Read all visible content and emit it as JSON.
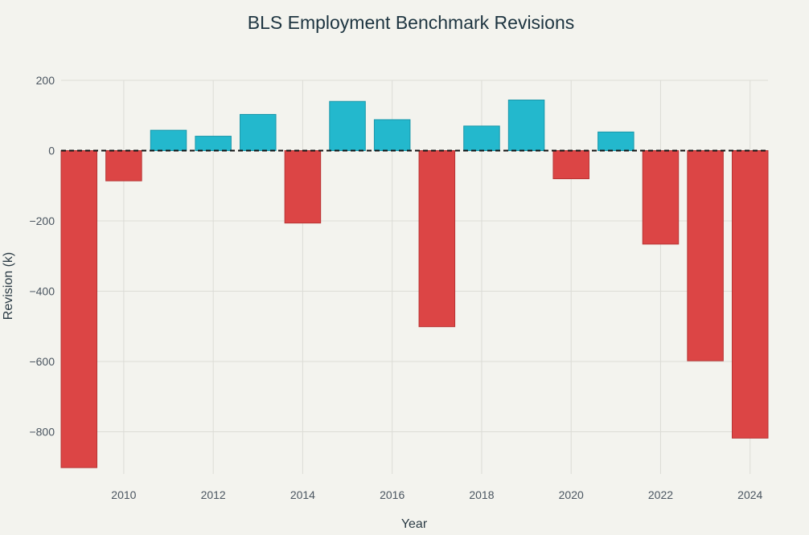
{
  "chart_data": {
    "type": "bar",
    "title": "BLS Employment Benchmark Revisions",
    "xlabel": "Year",
    "ylabel": "Revision (k)",
    "ylim": [
      -920,
      200
    ],
    "xlim": [
      2008.6,
      2024.4
    ],
    "yticks": [
      200,
      0,
      -200,
      -400,
      -600,
      -800
    ],
    "ytick_labels": [
      "200",
      "0",
      "−200",
      "−400",
      "−600",
      "−800"
    ],
    "xticks": [
      2010,
      2012,
      2014,
      2016,
      2018,
      2020,
      2022,
      2024
    ],
    "xtick_labels": [
      "2010",
      "2012",
      "2014",
      "2016",
      "2018",
      "2020",
      "2022",
      "2024"
    ],
    "categories": [
      2009,
      2010,
      2011,
      2012,
      2013,
      2014,
      2015,
      2016,
      2017,
      2018,
      2019,
      2020,
      2021,
      2022,
      2023,
      2024
    ],
    "values": [
      -902,
      -86,
      58,
      41,
      103,
      -206,
      140,
      88,
      -501,
      70,
      144,
      -80,
      53,
      -266,
      -598,
      -818
    ],
    "colors": {
      "positive": "#23b8cd",
      "negative": "#dc4545",
      "positive_edge": "#1a97aa",
      "negative_edge": "#b83434"
    },
    "zero_line": "dashed",
    "grid": true
  }
}
